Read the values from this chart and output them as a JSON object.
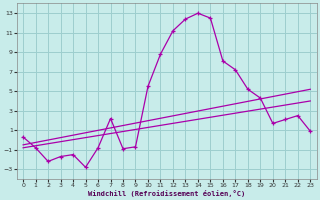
{
  "bg_color": "#c8ecea",
  "grid_color": "#9dcece",
  "line_color": "#aa00aa",
  "xlim": [
    -0.5,
    23.5
  ],
  "ylim": [
    -4,
    14
  ],
  "xticks": [
    0,
    1,
    2,
    3,
    4,
    5,
    6,
    7,
    8,
    9,
    10,
    11,
    12,
    13,
    14,
    15,
    16,
    17,
    18,
    19,
    20,
    21,
    22,
    23
  ],
  "yticks": [
    -3,
    -1,
    1,
    3,
    5,
    7,
    9,
    11,
    13
  ],
  "xlabel": "Windchill (Refroidissement éolien,°C)",
  "curve1_x": [
    0,
    1,
    2,
    3,
    4,
    5,
    6,
    7,
    8,
    9,
    10,
    11,
    12,
    13,
    14,
    15,
    16,
    17,
    18,
    19,
    20,
    21,
    22,
    23
  ],
  "curve1_y": [
    0.3,
    -0.8,
    -2.2,
    -1.7,
    -1.5,
    -2.8,
    -0.8,
    2.2,
    -0.9,
    -0.7,
    5.5,
    8.8,
    11.2,
    12.4,
    13.0,
    12.5,
    8.1,
    7.2,
    5.2,
    4.3,
    1.7,
    2.1,
    2.5,
    0.9
  ],
  "line2_x": [
    0,
    23
  ],
  "line2_y": [
    -0.5,
    5.2
  ],
  "line3_x": [
    0,
    23
  ],
  "line3_y": [
    -0.8,
    4.0
  ]
}
